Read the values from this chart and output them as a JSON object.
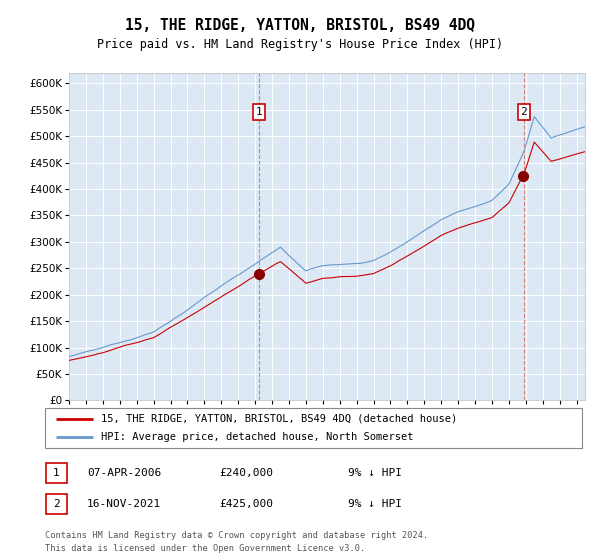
{
  "title": "15, THE RIDGE, YATTON, BRISTOL, BS49 4DQ",
  "subtitle": "Price paid vs. HM Land Registry's House Price Index (HPI)",
  "ylim": [
    0,
    620000
  ],
  "yticks": [
    0,
    50000,
    100000,
    150000,
    200000,
    250000,
    300000,
    350000,
    400000,
    450000,
    500000,
    550000,
    600000
  ],
  "bg_color": "#dce9f5",
  "grid_color": "#ffffff",
  "sale1_year": 2006.25,
  "sale1_price": 240000,
  "sale2_year": 2021.875,
  "sale2_price": 425000,
  "legend_line1": "15, THE RIDGE, YATTON, BRISTOL, BS49 4DQ (detached house)",
  "legend_line2": "HPI: Average price, detached house, North Somerset",
  "info1_date": "07-APR-2006",
  "info1_price": "£240,000",
  "info1_hpi": "9% ↓ HPI",
  "info2_date": "16-NOV-2021",
  "info2_price": "£425,000",
  "info2_hpi": "9% ↓ HPI",
  "footer": "Contains HM Land Registry data © Crown copyright and database right 2024.\nThis data is licensed under the Open Government Licence v3.0.",
  "sale_line_color": "#cc0000",
  "hpi_line_color": "#6699cc",
  "dashed_line_color": "#cc6666",
  "annotation_edge_color": "#cc0000",
  "sale_marker_color": "#880000"
}
